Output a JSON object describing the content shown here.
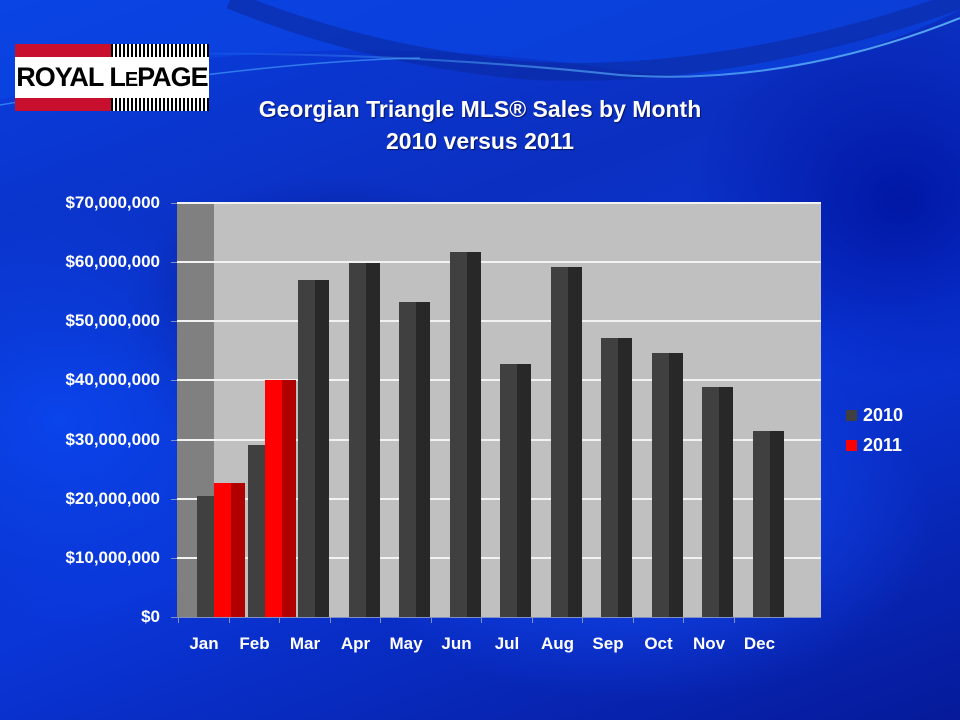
{
  "logo": {
    "text_main": "ROYAL L",
    "text_small": "E",
    "text_end": "PAGE"
  },
  "title": {
    "line1": "Georgian Triangle MLS®  Sales by Month",
    "line2": "2010 versus 2011"
  },
  "colors": {
    "series_2010": "#404040",
    "series_2011": "#ff0000",
    "plot_bg": "#c0c0c0",
    "background": "#0a3ee0"
  },
  "legend": [
    {
      "label": "2010",
      "color": "#404040"
    },
    {
      "label": "2011",
      "color": "#ff0000"
    }
  ],
  "chart_data": {
    "type": "bar",
    "title": "Georgian Triangle MLS®  Sales by Month 2010 versus 2011",
    "xlabel": "",
    "ylabel": "",
    "categories": [
      "Jan",
      "Feb",
      "Mar",
      "Apr",
      "May",
      "Jun",
      "Jul",
      "Aug",
      "Sep",
      "Oct",
      "Nov",
      "Dec"
    ],
    "series": [
      {
        "name": "2010",
        "values": [
          20500000,
          29100000,
          57000000,
          59900000,
          53300000,
          61800000,
          42800000,
          59200000,
          47200000,
          44700000,
          38900000,
          31500000
        ]
      },
      {
        "name": "2011",
        "values": [
          22700000,
          40100000,
          null,
          null,
          null,
          null,
          null,
          null,
          null,
          null,
          null,
          null
        ]
      }
    ],
    "ylim": [
      0,
      70000000
    ],
    "yticks": [
      "$0",
      "$10,000,000",
      "$20,000,000",
      "$30,000,000",
      "$40,000,000",
      "$50,000,000",
      "$60,000,000",
      "$70,000,000"
    ],
    "grid": true,
    "legend_position": "right"
  }
}
